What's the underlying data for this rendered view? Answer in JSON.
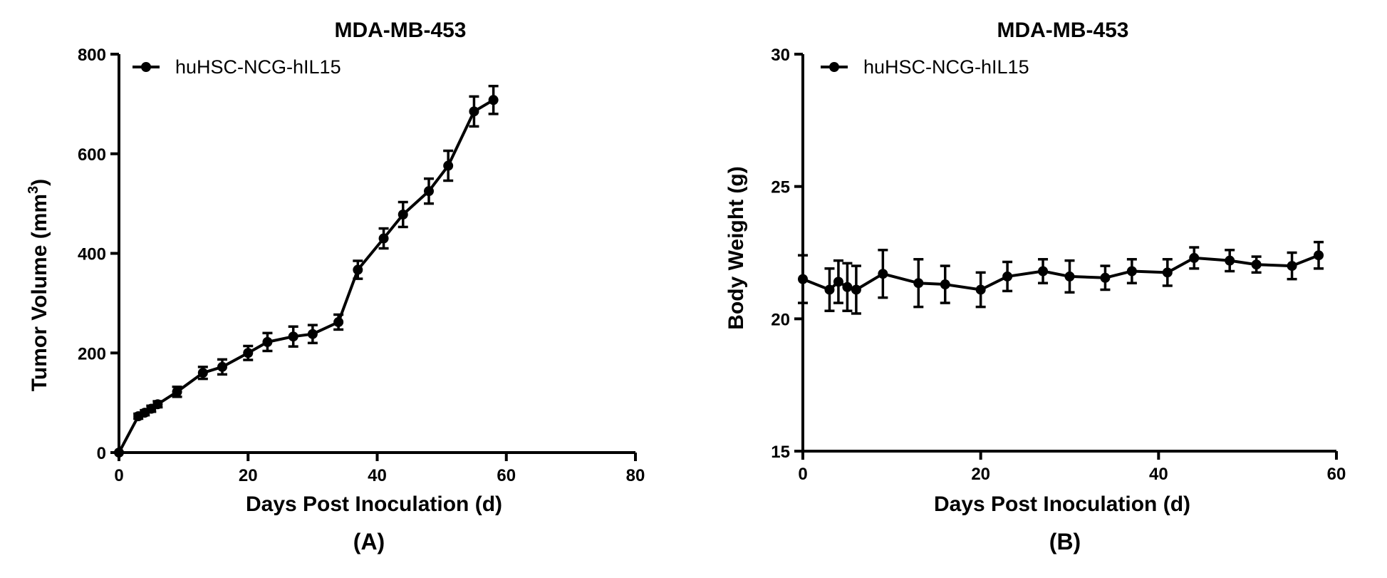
{
  "chart_data": [
    {
      "type": "line",
      "panel_label": "(A)",
      "title": "MDA-MB-453",
      "xlabel": "Days Post Inoculation (d)",
      "ylabel_main": "Tumor Volume (mm",
      "ylabel_sup": "3",
      "ylabel_close": ")",
      "xlim": [
        0,
        80
      ],
      "ylim": [
        0,
        800
      ],
      "xticks": [
        0,
        20,
        40,
        60,
        80
      ],
      "yticks": [
        0,
        200,
        400,
        600,
        800
      ],
      "legend_position": "top-left",
      "series": [
        {
          "name": "huHSC-NCG-hIL15",
          "color": "#000000",
          "x": [
            0,
            3,
            4,
            5,
            6,
            9,
            13,
            16,
            20,
            23,
            27,
            30,
            34,
            37,
            41,
            44,
            48,
            51,
            55,
            58
          ],
          "y": [
            0,
            73,
            80,
            88,
            97,
            122,
            160,
            172,
            200,
            222,
            233,
            238,
            262,
            367,
            430,
            478,
            525,
            576,
            685,
            708
          ],
          "err": [
            0,
            5,
            5,
            6,
            6,
            10,
            12,
            15,
            14,
            18,
            20,
            18,
            15,
            18,
            20,
            25,
            25,
            30,
            30,
            28
          ]
        }
      ]
    },
    {
      "type": "line",
      "panel_label": "(B)",
      "title": "MDA-MB-453",
      "xlabel": "Days Post Inoculation (d)",
      "ylabel": "Body Weight (g)",
      "xlim": [
        0,
        60
      ],
      "ylim": [
        15,
        30
      ],
      "xticks": [
        0,
        20,
        40,
        60
      ],
      "yticks": [
        15,
        20,
        25,
        30
      ],
      "legend_position": "top-left",
      "series": [
        {
          "name": "huHSC-NCG-hIL15",
          "color": "#000000",
          "x": [
            0,
            3,
            4,
            5,
            6,
            9,
            13,
            16,
            20,
            23,
            27,
            30,
            34,
            37,
            41,
            44,
            48,
            51,
            55,
            58
          ],
          "y": [
            21.5,
            21.1,
            21.4,
            21.2,
            21.1,
            21.7,
            21.35,
            21.3,
            21.1,
            21.6,
            21.8,
            21.6,
            21.55,
            21.8,
            21.75,
            22.3,
            22.2,
            22.05,
            22.0,
            22.4
          ],
          "err": [
            0.9,
            0.8,
            0.8,
            0.9,
            0.9,
            0.9,
            0.9,
            0.7,
            0.65,
            0.55,
            0.45,
            0.6,
            0.45,
            0.45,
            0.5,
            0.4,
            0.4,
            0.3,
            0.5,
            0.5
          ]
        }
      ]
    }
  ]
}
